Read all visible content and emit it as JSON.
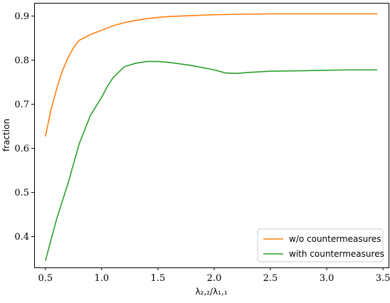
{
  "chart_data": {
    "type": "line",
    "title": "",
    "xlabel": "λ₂,₂/λ₁,₁",
    "ylabel": "fraction",
    "xlim": [
      0.4,
      3.55
    ],
    "ylim": [
      0.33,
      0.93
    ],
    "xticks": [
      0.5,
      1.0,
      1.5,
      2.0,
      2.5,
      3.0,
      3.5
    ],
    "xtick_labels": [
      "0.5",
      "1.0",
      "1.5",
      "2.0",
      "2.5",
      "3.0",
      "3.5"
    ],
    "yticks": [
      0.4,
      0.5,
      0.6,
      0.7,
      0.8,
      0.9
    ],
    "ytick_labels": [
      "0.4",
      "0.5",
      "0.6",
      "0.7",
      "0.8",
      "0.9"
    ],
    "grid": false,
    "legend_position": "bottom-right",
    "series": [
      {
        "name": "w/o countermeasures",
        "color": "#ff7f0e",
        "x": [
          0.5,
          0.55,
          0.6,
          0.65,
          0.7,
          0.75,
          0.8,
          0.9,
          1.0,
          1.1,
          1.2,
          1.3,
          1.4,
          1.5,
          1.6,
          1.8,
          2.0,
          2.2,
          2.5,
          2.8,
          3.0,
          3.2,
          3.45
        ],
        "y": [
          0.627,
          0.688,
          0.735,
          0.775,
          0.805,
          0.828,
          0.845,
          0.858,
          0.868,
          0.878,
          0.885,
          0.89,
          0.894,
          0.897,
          0.899,
          0.901,
          0.903,
          0.904,
          0.905,
          0.905,
          0.905,
          0.905,
          0.905
        ]
      },
      {
        "name": "with countermeasures",
        "color": "#2ca02c",
        "x": [
          0.5,
          0.6,
          0.7,
          0.8,
          0.9,
          1.0,
          1.05,
          1.1,
          1.2,
          1.3,
          1.4,
          1.5,
          1.6,
          1.8,
          2.0,
          2.1,
          2.2,
          2.3,
          2.5,
          2.8,
          3.0,
          3.2,
          3.45
        ],
        "y": [
          0.345,
          0.44,
          0.52,
          0.61,
          0.675,
          0.716,
          0.74,
          0.76,
          0.785,
          0.793,
          0.797,
          0.797,
          0.795,
          0.788,
          0.778,
          0.771,
          0.77,
          0.772,
          0.775,
          0.776,
          0.777,
          0.778,
          0.778
        ]
      }
    ]
  }
}
